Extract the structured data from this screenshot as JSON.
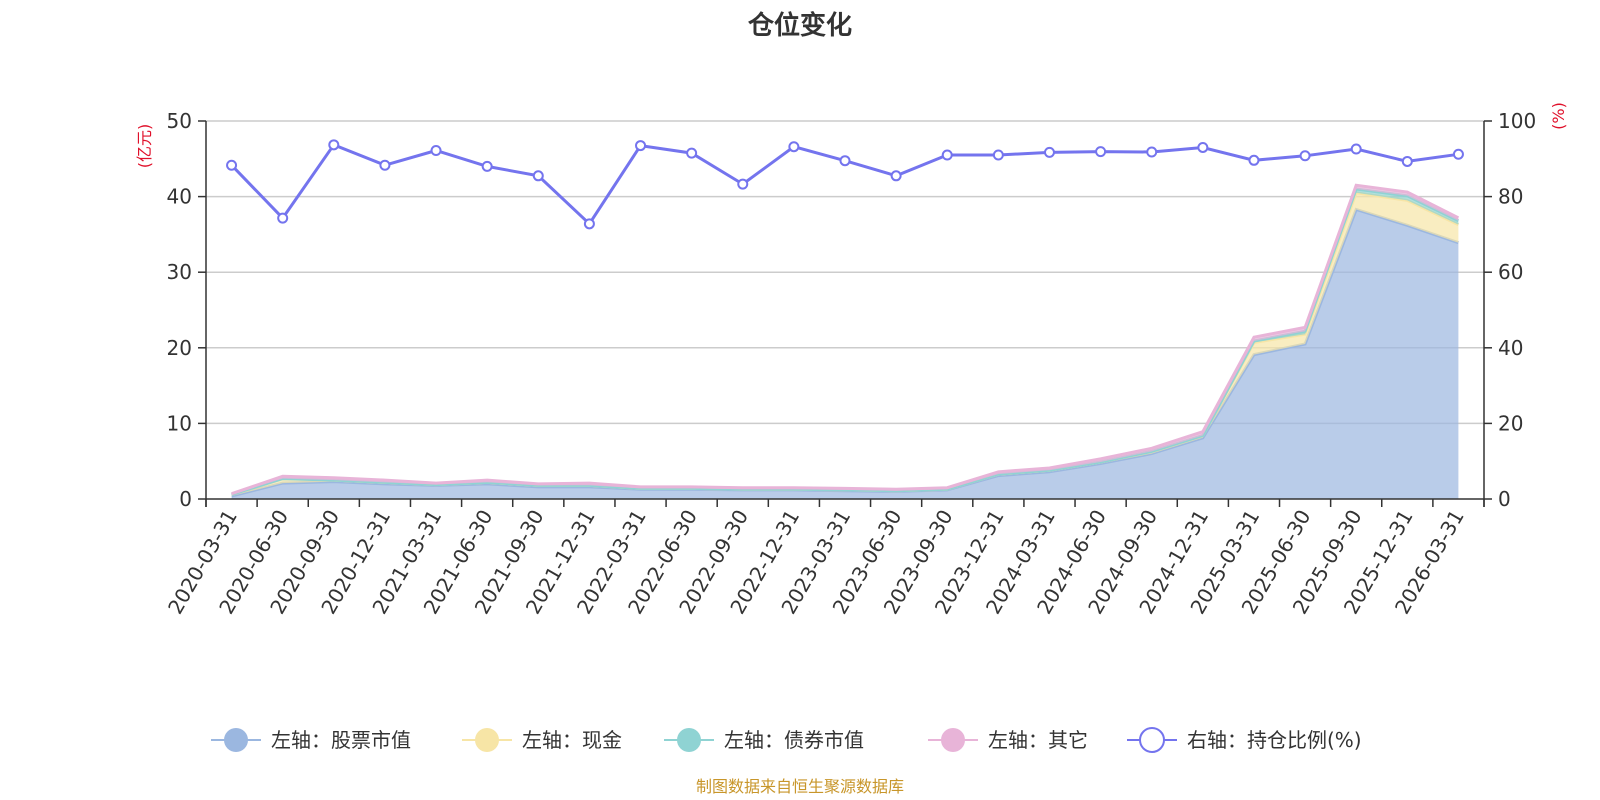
{
  "chart_data": {
    "type": "area",
    "title": "仓位变化",
    "left_axis": {
      "unit": "(亿元)",
      "ylim": [
        0,
        50
      ],
      "ticks": [
        0,
        10,
        20,
        30,
        40,
        50
      ]
    },
    "right_axis": {
      "unit": "(%)",
      "ylim": [
        0,
        100
      ],
      "ticks": [
        0,
        20,
        40,
        60,
        80,
        100
      ]
    },
    "categories": [
      "2020-03-31",
      "2020-06-30",
      "2020-09-30",
      "2020-12-31",
      "2021-03-31",
      "2021-06-30",
      "2021-09-30",
      "2021-12-31",
      "2022-03-31",
      "2022-06-30",
      "2022-09-30",
      "2022-12-31",
      "2023-03-31",
      "2023-06-30",
      "2023-09-30",
      "2023-12-31",
      "2024-03-31",
      "2024-06-30",
      "2024-09-30",
      "2024-12-31",
      "2025-03-31",
      "2025-06-30",
      "2025-09-30",
      "2025-12-31",
      "2026-03-31"
    ],
    "grid": true,
    "legend_position": "bottom",
    "series": [
      {
        "name": "左轴：股票市值",
        "axis": "left",
        "stacked": true,
        "color": "#9bb7e0",
        "values": [
          0.4,
          2.1,
          2.3,
          2.0,
          1.8,
          2.0,
          1.6,
          1.6,
          1.3,
          1.3,
          1.2,
          1.2,
          1.1,
          1.0,
          1.2,
          3.1,
          3.6,
          4.7,
          6.0,
          8.1,
          19.1,
          20.5,
          38.3,
          36.2,
          33.9
        ]
      },
      {
        "name": "左轴：现金",
        "axis": "left",
        "stacked": true,
        "color": "#f7e5a6",
        "values": [
          0.2,
          0.6,
          0.2,
          0.2,
          0.1,
          0.2,
          0.2,
          0.2,
          0.1,
          0.1,
          0.1,
          0.1,
          0.1,
          0.1,
          0.1,
          0.2,
          0.2,
          0.2,
          0.3,
          0.3,
          1.6,
          1.3,
          2.2,
          3.3,
          2.4
        ]
      },
      {
        "name": "左轴：债券市值",
        "axis": "left",
        "stacked": true,
        "color": "#8fd3d3",
        "values": [
          0,
          0,
          0,
          0,
          0,
          0,
          0,
          0,
          0,
          0,
          0,
          0,
          0,
          0,
          0,
          0,
          0,
          0,
          0,
          0,
          0.2,
          0.4,
          0.5,
          0.6,
          0.5
        ]
      },
      {
        "name": "左轴：其它",
        "axis": "left",
        "stacked": true,
        "color": "#e8b4d8",
        "values": [
          0.1,
          0.3,
          0.3,
          0.3,
          0.2,
          0.3,
          0.2,
          0.3,
          0.2,
          0.2,
          0.2,
          0.2,
          0.2,
          0.2,
          0.2,
          0.3,
          0.3,
          0.4,
          0.4,
          0.5,
          0.5,
          0.5,
          0.5,
          0.5,
          0.4
        ]
      },
      {
        "name": "右轴：持仓比例(%)",
        "axis": "right",
        "type": "line",
        "color": "#7474ee",
        "values": [
          88.3,
          74.3,
          93.7,
          88.3,
          92.2,
          88.0,
          85.5,
          72.8,
          93.5,
          91.5,
          83.3,
          93.2,
          89.5,
          85.5,
          91.0,
          91.0,
          91.7,
          91.9,
          91.8,
          93.0,
          89.6,
          90.8,
          92.6,
          89.3,
          91.2
        ]
      }
    ],
    "source": "制图数据来自恒生聚源数据库"
  }
}
